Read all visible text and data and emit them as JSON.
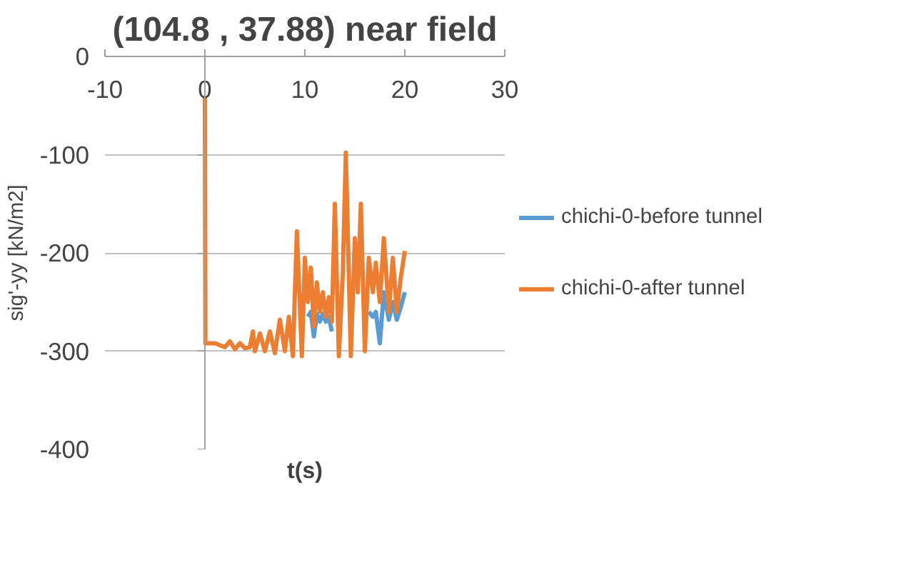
{
  "chart_data": {
    "type": "line",
    "title": "(104.8 , 37.88) near field",
    "xlabel": "t(s)",
    "ylabel": "sig'-yy [kN/m2]",
    "xlim": [
      -10,
      30
    ],
    "xticks": [
      -10,
      0,
      10,
      20,
      30
    ],
    "ylim": [
      -400,
      0
    ],
    "yticks": [
      0,
      -100,
      -200,
      -300,
      -400
    ],
    "grid": "y",
    "legend": "right",
    "marker": "none",
    "line_style": "solid",
    "series": [
      {
        "name": "chichi-0-before tunnel",
        "color": "#5b9bd5",
        "x": [
          10.3,
          10.6,
          10.9,
          11.2,
          11.5,
          11.8,
          12.1,
          12.4,
          12.7,
          14,
          16.4,
          16.8,
          17.1,
          17.5,
          17.9,
          18.4,
          18.8,
          19.2,
          19.6,
          20
        ],
        "values": [
          -265,
          -260,
          -285,
          -262,
          -270,
          -262,
          -270,
          -265,
          -280,
          null,
          -260,
          -265,
          -260,
          -292,
          -240,
          -268,
          -250,
          -268,
          -255,
          -240
        ]
      },
      {
        "name": "chichi-0-after tunnel",
        "color": "#ed7d31",
        "x": [
          0,
          0.05,
          1,
          2,
          2.5,
          3,
          3.5,
          4,
          4.5,
          4.8,
          5,
          5.5,
          6,
          6.5,
          7,
          7.5,
          8,
          8.4,
          8.8,
          9.2,
          9.7,
          10,
          10.3,
          10.6,
          10.9,
          11.2,
          11.5,
          11.8,
          12.1,
          12.4,
          12.7,
          13,
          13.4,
          13.8,
          14.1,
          14.6,
          15,
          15.3,
          15.6,
          16,
          16.4,
          16.8,
          17.1,
          17.5,
          17.9,
          18.4,
          18.8,
          19.2,
          19.6,
          20
        ],
        "values": [
          -41,
          -292,
          -292,
          -296,
          -290,
          -298,
          -292,
          -297,
          -296,
          -280,
          -300,
          -282,
          -300,
          -280,
          -302,
          -268,
          -300,
          -265,
          -305,
          -178,
          -305,
          -205,
          -250,
          -215,
          -275,
          -230,
          -260,
          -240,
          -265,
          -245,
          -270,
          -150,
          -305,
          -220,
          -98,
          -305,
          -185,
          -240,
          -150,
          -300,
          -205,
          -240,
          -210,
          -250,
          -185,
          -260,
          -205,
          -260,
          -225,
          -198
        ]
      }
    ]
  }
}
